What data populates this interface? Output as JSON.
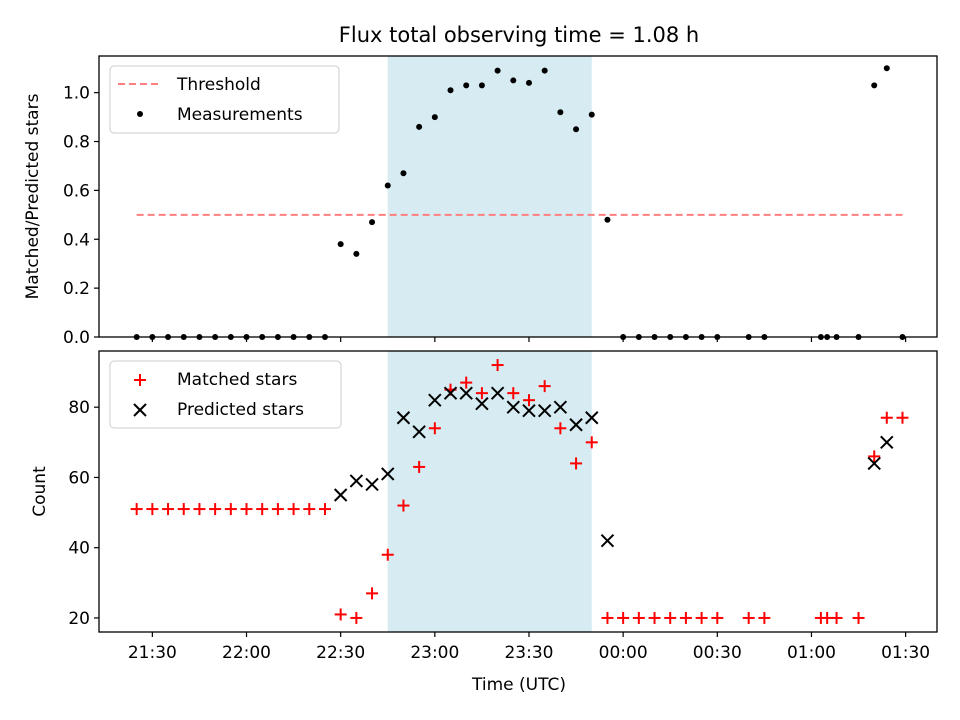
{
  "figure_title": "Flux total observing time = 1.08 h",
  "colors": {
    "threshold": "#ff7f7f",
    "measurements": "#000000",
    "matched": "#ff0000",
    "predicted": "#000000",
    "highlight": "#add8e6"
  },
  "chart_data": [
    {
      "type": "scatter",
      "title": "Flux total observing time = 1.08 h",
      "xlabel": "",
      "ylabel": "Matched/Predicted stars",
      "ylim": [
        0,
        1.15
      ],
      "yticks": [
        0.0,
        0.2,
        0.4,
        0.6,
        0.8,
        1.0
      ],
      "ytick_labels": [
        "0.0",
        "0.2",
        "0.4",
        "0.6",
        "0.8",
        "1.0"
      ],
      "xticks_shown_labels": false,
      "legend": "top-left",
      "highlight_span": [
        "22:45",
        "23:50"
      ],
      "series": [
        {
          "name": "Threshold",
          "type": "line",
          "style": "dashed",
          "x": [
            "21:25",
            "01:29"
          ],
          "y": [
            0.5,
            0.5
          ]
        },
        {
          "name": "Measurements",
          "type": "scatter",
          "x": [
            "21:25",
            "21:30",
            "21:35",
            "21:40",
            "21:45",
            "21:50",
            "21:55",
            "22:00",
            "22:05",
            "22:10",
            "22:15",
            "22:20",
            "22:25",
            "22:30",
            "22:35",
            "22:40",
            "22:45",
            "22:50",
            "22:55",
            "23:00",
            "23:05",
            "23:10",
            "23:15",
            "23:20",
            "23:25",
            "23:30",
            "23:35",
            "23:40",
            "23:45",
            "23:50",
            "23:55",
            "00:00",
            "00:05",
            "00:10",
            "00:15",
            "00:20",
            "00:25",
            "00:30",
            "00:40",
            "00:45",
            "01:03",
            "01:05",
            "01:08",
            "01:15",
            "01:20",
            "01:24",
            "01:29"
          ],
          "y": [
            0,
            0,
            0,
            0,
            0,
            0,
            0,
            0,
            0,
            0,
            0,
            0,
            0,
            0.38,
            0.34,
            0.47,
            0.62,
            0.67,
            0.86,
            0.9,
            1.01,
            1.03,
            1.03,
            1.09,
            1.05,
            1.04,
            1.09,
            0.92,
            0.85,
            0.91,
            0.48,
            0,
            0,
            0,
            0,
            0,
            0,
            0,
            0,
            0,
            0,
            0,
            0,
            0,
            1.03,
            1.1,
            0
          ]
        }
      ]
    },
    {
      "type": "scatter",
      "xlabel": "Time (UTC)",
      "ylabel": "Count",
      "ylim": [
        16,
        96
      ],
      "yticks": [
        20,
        40,
        60,
        80
      ],
      "ytick_labels": [
        "20",
        "40",
        "60",
        "80"
      ],
      "xlim": [
        "21:13",
        "01:40"
      ],
      "xticks": [
        "21:30",
        "22:00",
        "22:30",
        "23:00",
        "23:30",
        "00:00",
        "00:30",
        "01:00",
        "01:30"
      ],
      "legend": "top-left",
      "highlight_span": [
        "22:45",
        "23:50"
      ],
      "series": [
        {
          "name": "Matched stars",
          "marker": "plus",
          "x": [
            "21:25",
            "21:30",
            "21:35",
            "21:40",
            "21:45",
            "21:50",
            "21:55",
            "22:00",
            "22:05",
            "22:10",
            "22:15",
            "22:20",
            "22:25",
            "22:30",
            "22:35",
            "22:40",
            "22:45",
            "22:50",
            "22:55",
            "23:00",
            "23:05",
            "23:10",
            "23:15",
            "23:20",
            "23:25",
            "23:30",
            "23:35",
            "23:40",
            "23:45",
            "23:50",
            "23:55",
            "00:00",
            "00:05",
            "00:10",
            "00:15",
            "00:20",
            "00:25",
            "00:30",
            "00:40",
            "00:45",
            "01:03",
            "01:05",
            "01:08",
            "01:15",
            "01:20",
            "01:24",
            "01:29"
          ],
          "y": [
            51,
            51,
            51,
            51,
            51,
            51,
            51,
            51,
            51,
            51,
            51,
            51,
            51,
            21,
            20,
            27,
            38,
            52,
            63,
            74,
            85,
            87,
            84,
            92,
            84,
            82,
            86,
            74,
            64,
            70,
            20,
            20,
            20,
            20,
            20,
            20,
            20,
            20,
            20,
            20,
            20,
            20,
            20,
            20,
            66,
            77,
            77
          ]
        },
        {
          "name": "Predicted stars",
          "marker": "x",
          "x": [
            "22:30",
            "22:35",
            "22:40",
            "22:45",
            "22:50",
            "22:55",
            "23:00",
            "23:05",
            "23:10",
            "23:15",
            "23:20",
            "23:25",
            "23:30",
            "23:35",
            "23:40",
            "23:45",
            "23:50",
            "23:55",
            "01:20",
            "01:24"
          ],
          "y": [
            55,
            59,
            58,
            61,
            77,
            73,
            82,
            84,
            84,
            81,
            84,
            80,
            79,
            79,
            80,
            75,
            77,
            42,
            64,
            70
          ]
        }
      ]
    }
  ]
}
